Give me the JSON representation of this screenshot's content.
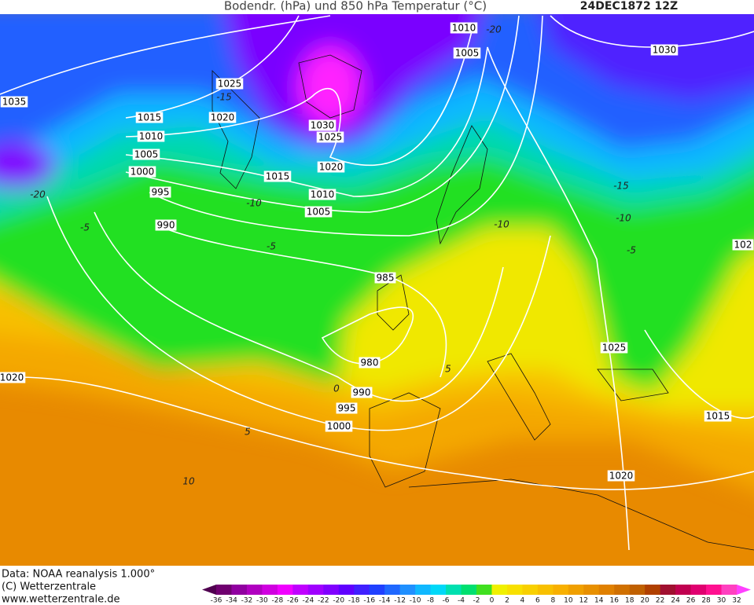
{
  "header": {
    "title": "Bodendr. (hPa) und 850 hPa Temperatur (°C)",
    "date": "24DEC1872 12Z"
  },
  "map": {
    "isobar_labels": [
      "1010",
      "1005",
      "1030",
      "1025",
      "1035",
      "1015",
      "1020",
      "1010",
      "1005",
      "1000",
      "995",
      "990",
      "1030",
      "1025",
      "1020",
      "1015",
      "1010",
      "1005",
      "985",
      "980",
      "990",
      "995",
      "1000",
      "1025",
      "1015",
      "1020",
      "102",
      "1020"
    ],
    "temperature_labels": [
      "-15",
      "-20",
      "-10",
      "-5",
      "-5",
      "-15",
      "-10",
      "-5",
      "0",
      "5",
      "5",
      "10",
      "-10",
      "-20"
    ]
  },
  "footer": {
    "data": "Data: NOAA reanalysis 1.000°",
    "copyright": "(C) Wetterzentrale",
    "url": "www.wetterzentrale.de"
  },
  "colorbar": {
    "ticks": [
      -36,
      -34,
      -32,
      -30,
      -28,
      -26,
      -24,
      -22,
      -20,
      -18,
      -16,
      -14,
      -12,
      -10,
      -8,
      -6,
      -4,
      -2,
      0,
      2,
      4,
      6,
      8,
      10,
      12,
      14,
      16,
      18,
      20,
      22,
      24,
      26,
      28,
      30,
      32
    ],
    "colors": [
      "#500050",
      "#700070",
      "#9000a0",
      "#b000c0",
      "#d000e0",
      "#f000ff",
      "#c000ff",
      "#a000ff",
      "#8000ff",
      "#6000ff",
      "#4020ff",
      "#2040ff",
      "#2068ff",
      "#2090ff",
      "#10b8ff",
      "#00d8f8",
      "#00e0b0",
      "#00e070",
      "#40e020",
      "#f0f000",
      "#f8e000",
      "#f8d000",
      "#f8c000",
      "#f8b000",
      "#f0a000",
      "#e89000",
      "#e08000",
      "#d07000",
      "#c06000",
      "#b04000",
      "#a01030",
      "#c00050",
      "#e00070",
      "#ff1090",
      "#ff40c0",
      "#ff40ff"
    ]
  }
}
